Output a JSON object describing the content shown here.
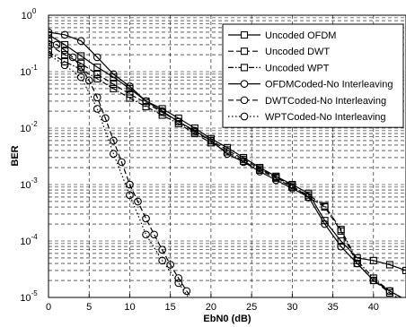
{
  "chart_data": {
    "type": "line",
    "xlabel": "EbN0 (dB)",
    "ylabel": "BER",
    "xlim": [
      0,
      44
    ],
    "ylim": [
      1e-05,
      1
    ],
    "y_scale": "log",
    "grid": true,
    "legend_position": "top-right",
    "x_ticks": [
      "0",
      "5",
      "10",
      "15",
      "20",
      "25",
      "30",
      "35",
      "40"
    ],
    "y_tick_labels": [
      {
        "base": "10",
        "exp": "0"
      },
      {
        "base": "10",
        "exp": "-1"
      },
      {
        "base": "10",
        "exp": "-2"
      },
      {
        "base": "10",
        "exp": "-3"
      },
      {
        "base": "10",
        "exp": "-4"
      },
      {
        "base": "10",
        "exp": "-5"
      }
    ],
    "series": [
      {
        "name": "Uncoded OFDM",
        "marker": "square",
        "dash": "solid",
        "x": [
          0,
          2,
          4,
          6,
          8,
          10,
          12,
          14,
          16,
          18,
          20,
          22,
          24,
          26,
          28,
          30,
          32,
          34,
          36,
          38,
          40,
          42,
          44
        ],
        "y": [
          0.45,
          0.3,
          0.19,
          0.12,
          0.08,
          0.05,
          0.03,
          0.022,
          0.015,
          0.01,
          0.0065,
          0.0045,
          0.003,
          0.002,
          0.0014,
          0.001,
          0.0007,
          0.00023,
          0.0001,
          5e-05,
          4.5e-05,
          3.8e-05,
          3e-05
        ]
      },
      {
        "name": "Uncoded DWT",
        "marker": "square",
        "dash": "dashed",
        "x": [
          0,
          2,
          4,
          6,
          8,
          10,
          12,
          14,
          16,
          18,
          20,
          22,
          24,
          26,
          28,
          30,
          32,
          34,
          36,
          38,
          40,
          42,
          44
        ],
        "y": [
          0.3,
          0.2,
          0.14,
          0.09,
          0.06,
          0.04,
          0.028,
          0.019,
          0.013,
          0.0085,
          0.006,
          0.0041,
          0.0028,
          0.0019,
          0.00135,
          0.00095,
          0.0006,
          0.0004,
          0.00015,
          4e-05,
          2e-05,
          1.2e-05,
          8e-06
        ]
      },
      {
        "name": "Uncoded WPT",
        "marker": "square",
        "dash": "dashdot",
        "x": [
          0,
          2,
          4,
          6,
          8,
          10,
          12,
          14,
          16,
          18,
          20,
          22,
          24,
          26,
          28,
          30,
          32,
          34,
          36,
          38,
          40,
          42,
          44
        ],
        "y": [
          0.22,
          0.15,
          0.11,
          0.075,
          0.05,
          0.034,
          0.024,
          0.017,
          0.012,
          0.008,
          0.0055,
          0.0038,
          0.0026,
          0.0018,
          0.0013,
          0.0009,
          0.00065,
          0.00042,
          0.00016,
          4.5e-05,
          2.2e-05,
          1.3e-05,
          9e-06
        ]
      },
      {
        "name": "OFDMCoded-No Interleaving",
        "marker": "circle",
        "dash": "solid",
        "x": [
          0,
          2,
          4,
          6,
          8,
          10,
          12,
          14,
          16,
          18,
          20,
          22,
          24,
          26,
          28,
          30,
          32,
          34,
          36,
          38,
          40,
          42,
          44
        ],
        "y": [
          0.5,
          0.45,
          0.35,
          0.18,
          0.09,
          0.055,
          0.03,
          0.02,
          0.013,
          0.009,
          0.006,
          0.0035,
          0.0025,
          0.0017,
          0.0012,
          0.00085,
          0.0006,
          0.0002,
          8e-05,
          4e-05,
          2e-05,
          1.3e-05,
          9e-06
        ]
      },
      {
        "name": "DWTCoded-No Interleaving",
        "marker": "circle",
        "dash": "dashed",
        "x": [
          0,
          1,
          2,
          3,
          4,
          5,
          6,
          7,
          8,
          9,
          10,
          11,
          12,
          13,
          14,
          15,
          16,
          17,
          18
        ],
        "y": [
          0.36,
          0.3,
          0.24,
          0.18,
          0.12,
          0.07,
          0.035,
          0.015,
          0.006,
          0.0025,
          0.001,
          0.0005,
          0.00025,
          0.00013,
          7e-05,
          3.8e-05,
          2.2e-05,
          1.3e-05,
          8e-06
        ]
      },
      {
        "name": "WPTCoded-No Interleaving",
        "marker": "circle",
        "dash": "dotted",
        "x": [
          0,
          2,
          4,
          6,
          8,
          10,
          12,
          14,
          16,
          18
        ],
        "y": [
          0.2,
          0.13,
          0.08,
          0.022,
          0.0035,
          0.00065,
          0.00013,
          4.5e-05,
          1.8e-05,
          7e-06
        ]
      }
    ]
  }
}
